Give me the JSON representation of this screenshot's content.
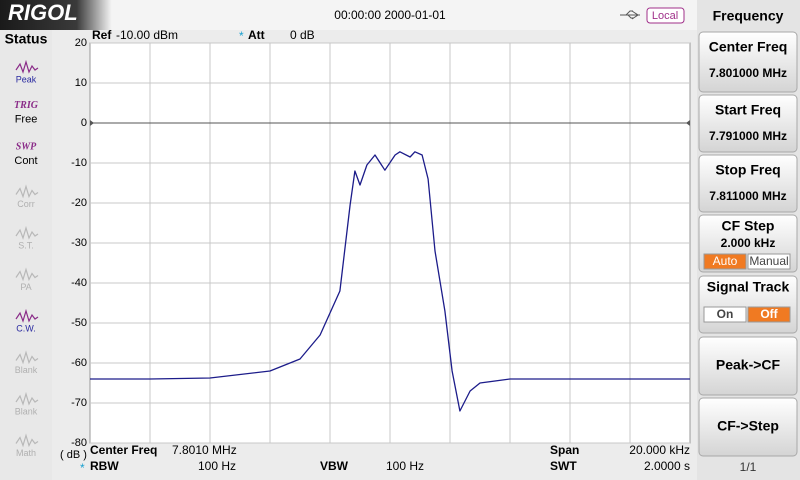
{
  "header": {
    "logo": "RIGOL",
    "datetime": "00:00:00 2000-01-01",
    "mode": "Local"
  },
  "status": {
    "title": "Status",
    "items": [
      {
        "label": "Peak",
        "enabled": true
      },
      {
        "top": "TRIG",
        "label": "Free",
        "enabled": true
      },
      {
        "top": "SWP",
        "label": "Cont",
        "enabled": true
      },
      {
        "label": "Corr",
        "enabled": false
      },
      {
        "label": "S.T.",
        "enabled": false
      },
      {
        "label": "PA",
        "enabled": false
      },
      {
        "label": "C.W.",
        "enabled": true
      },
      {
        "label": "Blank",
        "enabled": false
      },
      {
        "label": "Blank",
        "enabled": false
      },
      {
        "label": "Math",
        "enabled": false
      }
    ]
  },
  "chart": {
    "type": "line",
    "ref_label": "Ref",
    "ref_value": "-10.00 dBm",
    "att_label": "Att",
    "att_value": "0 dB",
    "unit": "( dB )",
    "center_label": "Center Freq",
    "center_value": "7.8010 MHz",
    "span_label": "Span",
    "span_value": "20.000 kHz",
    "rbw_label": "RBW",
    "rbw_value": "100 Hz",
    "vbw_label": "VBW",
    "vbw_value": "100 Hz",
    "swt_label": "SWT",
    "swt_value": "2.0000 s",
    "ylim": [
      -80,
      20
    ],
    "yticks": [
      20,
      10,
      0,
      -10,
      -20,
      -30,
      -40,
      -50,
      -60,
      -70,
      -80
    ],
    "xlim": [
      7.791,
      7.811
    ],
    "xdivisions": 10,
    "reference": 0,
    "grid": true,
    "color": "#1c1c8a",
    "trace": {
      "x": [
        7.791,
        7.793,
        7.795,
        7.797,
        7.798,
        7.79867,
        7.79933,
        7.79967,
        7.79983,
        7.8,
        7.80023,
        7.8005,
        7.80083,
        7.80117,
        7.80133,
        7.80167,
        7.80183,
        7.80207,
        7.80227,
        7.8025,
        7.80283,
        7.80307,
        7.80333,
        7.80367,
        7.804,
        7.805,
        7.808,
        7.811
      ],
      "values": [
        -64,
        -64,
        -63.75,
        -62,
        -59,
        -53,
        -42,
        -20.5,
        -12,
        -15.5,
        -10.5,
        -8,
        -11.8,
        -8,
        -7.2,
        -8.5,
        -7.2,
        -8,
        -14,
        -32,
        -47,
        -62,
        -72,
        -67,
        -65,
        -64,
        -64,
        -64
      ]
    }
  },
  "menu": {
    "title": "Frequency",
    "buttons": [
      {
        "label": "Center Freq",
        "value": "7.801000 MHz"
      },
      {
        "label": "Start Freq",
        "value": "7.791000 MHz"
      },
      {
        "label": "Stop Freq",
        "value": "7.811000 MHz"
      },
      {
        "label": "CF Step",
        "value": "2.000 kHz",
        "options": [
          "Auto",
          "Manual"
        ],
        "selected": 0
      },
      {
        "label": "Signal Track",
        "options": [
          "On",
          "Off"
        ],
        "selected": 1
      },
      {
        "label": "Peak->CF"
      },
      {
        "label": "CF->Step"
      }
    ],
    "page": "1/1"
  }
}
